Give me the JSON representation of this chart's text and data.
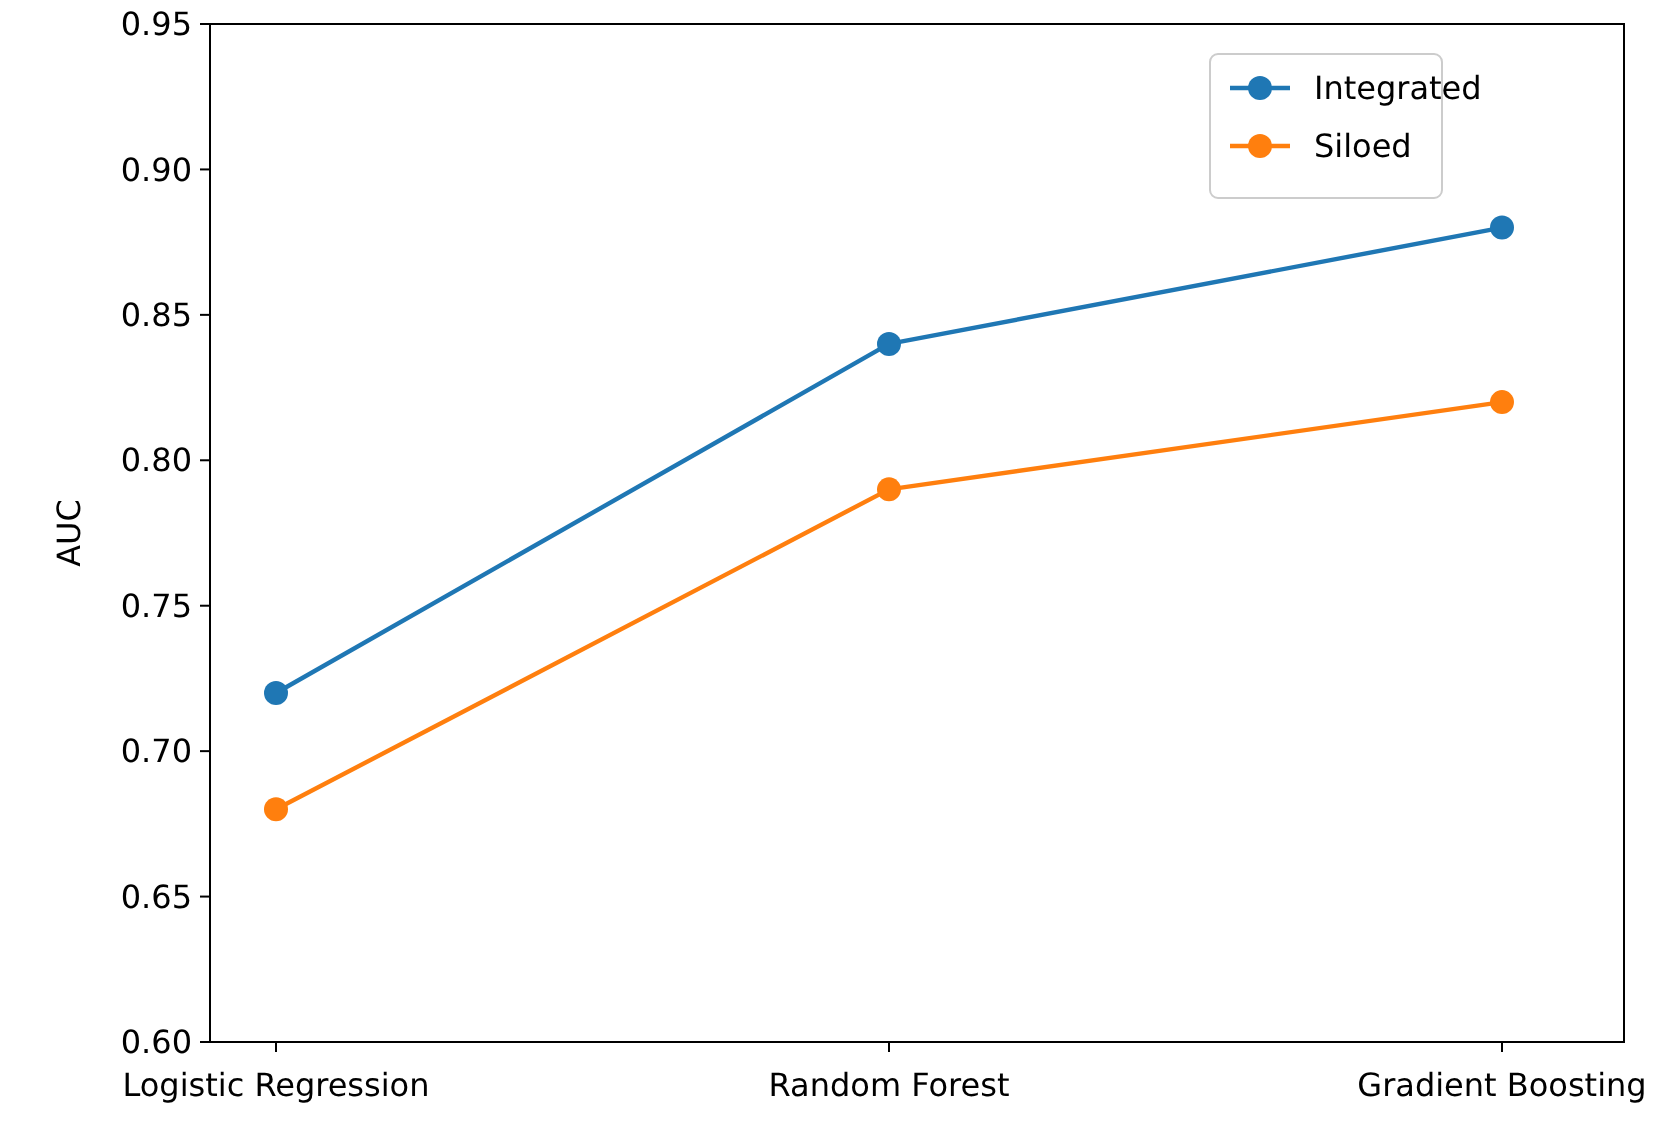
{
  "chart_data": {
    "type": "line",
    "ylabel": "AUC",
    "categories": [
      "Logistic Regression",
      "Random Forest",
      "Gradient Boosting"
    ],
    "series": [
      {
        "name": "Integrated",
        "color": "#1f77b4",
        "values": [
          0.72,
          0.84,
          0.88
        ]
      },
      {
        "name": "Siloed",
        "color": "#ff7f0e",
        "values": [
          0.68,
          0.79,
          0.82
        ]
      }
    ],
    "ylim": [
      0.6,
      0.95
    ],
    "yticks": [
      {
        "value": 0.6,
        "label": "0.60"
      },
      {
        "value": 0.65,
        "label": "0.65"
      },
      {
        "value": 0.7,
        "label": "0.70"
      },
      {
        "value": 0.75,
        "label": "0.75"
      },
      {
        "value": 0.8,
        "label": "0.80"
      },
      {
        "value": 0.85,
        "label": "0.85"
      },
      {
        "value": 0.9,
        "label": "0.90"
      },
      {
        "value": 0.95,
        "label": "0.95"
      }
    ],
    "legend": "top right",
    "marker": "circle",
    "line_style": "solid",
    "grid": false
  }
}
